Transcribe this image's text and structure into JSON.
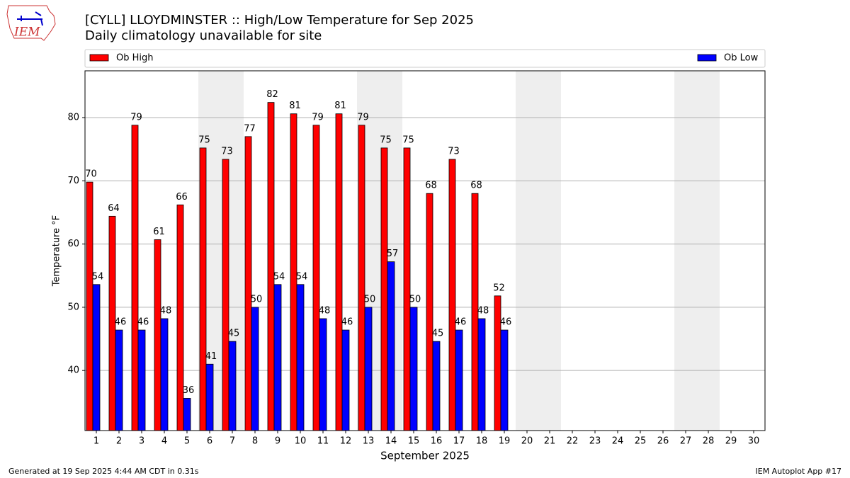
{
  "chart_data": {
    "type": "bar",
    "title": "[CYLL] LLOYDMINSTER :: High/Low Temperature for Sep 2025",
    "subtitle": "Daily climatology unavailable for site",
    "x_label": "September 2025",
    "y_label": "Temperature °F",
    "categories": [
      "1",
      "2",
      "3",
      "4",
      "5",
      "6",
      "7",
      "8",
      "9",
      "10",
      "11",
      "12",
      "13",
      "14",
      "15",
      "16",
      "17",
      "18",
      "19",
      "20",
      "21",
      "22",
      "23",
      "24",
      "25",
      "26",
      "27",
      "28",
      "29",
      "30"
    ],
    "series": [
      {
        "name": "Ob High",
        "color": "#ff0000",
        "values": [
          69.8,
          64.4,
          78.8,
          60.7,
          66.2,
          75.2,
          73.4,
          77.0,
          82.4,
          80.6,
          78.8,
          80.6,
          78.8,
          75.2,
          75.2,
          68.0,
          73.4,
          68.0,
          51.8,
          null,
          null,
          null,
          null,
          null,
          null,
          null,
          null,
          null,
          null,
          null
        ],
        "value_labels": [
          "70",
          "64",
          "79",
          "61",
          "66",
          "75",
          "73",
          "77",
          "82",
          "81",
          "79",
          "81",
          "79",
          "75",
          "75",
          "68",
          "73",
          "68",
          "52",
          null,
          null,
          null,
          null,
          null,
          null,
          null,
          null,
          null,
          null,
          null
        ]
      },
      {
        "name": "Ob Low",
        "color": "#0000ff",
        "values": [
          53.6,
          46.4,
          46.4,
          48.2,
          35.6,
          41.0,
          44.6,
          50.0,
          53.6,
          53.6,
          48.2,
          46.4,
          50.0,
          57.2,
          50.0,
          44.6,
          46.4,
          48.2,
          46.4,
          null,
          null,
          null,
          null,
          null,
          null,
          null,
          null,
          null,
          null,
          null
        ],
        "value_labels": [
          "54",
          "46",
          "46",
          "48",
          "36",
          "41",
          "45",
          "50",
          "54",
          "54",
          "48",
          "46",
          "50",
          "57",
          "50",
          "45",
          "46",
          "48",
          "46",
          null,
          null,
          null,
          null,
          null,
          null,
          null,
          null,
          null,
          null,
          null
        ]
      }
    ],
    "ylim": [
      30.5,
      87.4
    ],
    "yticks": [
      40,
      50,
      60,
      70,
      80
    ],
    "grid": true,
    "legend": "top",
    "footer_left": "Generated at 19 Sep 2025 4:44 AM CDT in 0.31s",
    "footer_right": "IEM Autoplot App #17",
    "logo_text": "IEM"
  }
}
